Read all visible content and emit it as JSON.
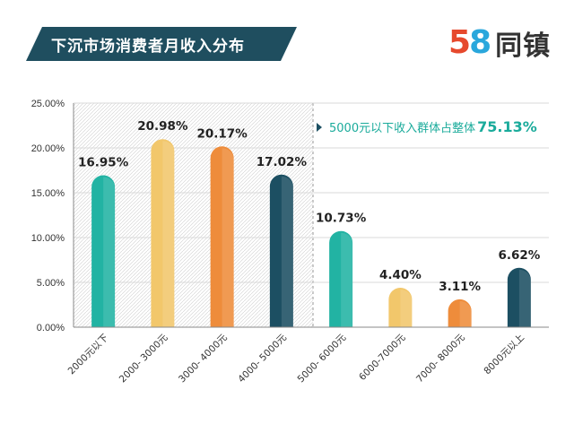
{
  "header": {
    "title": "下沉市场消费者月收入分布",
    "logo_digit5": "5",
    "logo_digit8": "8",
    "logo_text": "同镇"
  },
  "chart_data": {
    "type": "bar",
    "title": "下沉市场消费者月收入分布",
    "categories": [
      "2000元以下",
      "2000- 3000元",
      "3000- 4000元",
      "4000- 5000元",
      "5000- 6000元",
      "6000-7000元",
      "7000- 8000元",
      "8000元以上"
    ],
    "values": [
      16.95,
      20.98,
      20.17,
      17.02,
      10.73,
      4.4,
      3.11,
      6.62
    ],
    "value_labels": [
      "16.95%",
      "20.98%",
      "20.17%",
      "17.02%",
      "10.73%",
      "4.40%",
      "3.11%",
      "6.62%"
    ],
    "colors": [
      "#22b3a3",
      "#f2c76b",
      "#ee8c3b",
      "#1c4f62",
      "#22b3a3",
      "#f2c76b",
      "#ee8c3b",
      "#1c4f62"
    ],
    "ylim": [
      0,
      25
    ],
    "yticks": [
      "0.00%",
      "5.00%",
      "10.00%",
      "15.00%",
      "20.00%",
      "25.00%"
    ],
    "grid": true,
    "annotation": {
      "text": "5000元以下收入群体占整体",
      "value": "75.13%",
      "covers_categories": [
        0,
        1,
        2,
        3
      ]
    }
  }
}
